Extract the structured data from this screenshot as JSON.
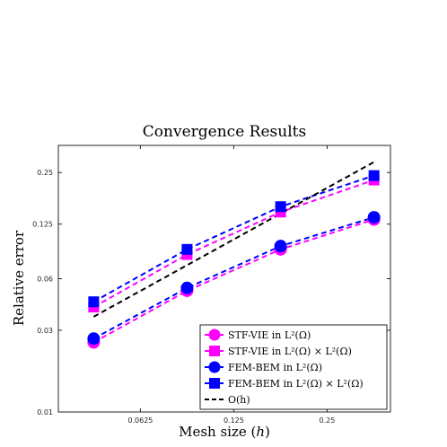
{
  "chart_data": {
    "type": "line",
    "title": "Convergence Results",
    "xlabel": "Mesh size",
    "xlabel_var": "h",
    "ylabel": "Relative error",
    "xscale": "log",
    "yscale": "log",
    "xlim": [
      0.034,
      0.4
    ],
    "ylim": [
      0.01,
      0.36
    ],
    "xticks": [
      0.0625,
      0.125,
      0.25
    ],
    "xtick_labels": [
      "0.0625",
      "0.125",
      "0.25"
    ],
    "yticks": [
      0.01,
      0.03,
      0.06,
      0.125,
      0.25
    ],
    "ytick_labels": [
      "0.01",
      "0.03",
      "0.06",
      "0.125",
      "0.25"
    ],
    "grid": false,
    "legend_position": "bottom-right",
    "x": [
      0.0442,
      0.0884,
      0.177,
      0.354
    ],
    "series": [
      {
        "name": "STF-VIE in L²(Ω)",
        "color": "#ff00ff",
        "marker": "circle",
        "values": [
          0.0255,
          0.051,
          0.089,
          0.133
        ]
      },
      {
        "name": "STF-VIE in L²(Ω) × L²(Ω)",
        "color": "#ff00ff",
        "marker": "square",
        "values": [
          0.041,
          0.083,
          0.147,
          0.226
        ]
      },
      {
        "name": "FEM-BEM in L²(Ω)",
        "color": "#0000ff",
        "marker": "circle",
        "values": [
          0.0268,
          0.053,
          0.093,
          0.137
        ]
      },
      {
        "name": "FEM-BEM in L²(Ω) × L²(Ω)",
        "color": "#0000ff",
        "marker": "square",
        "values": [
          0.044,
          0.089,
          0.158,
          0.24
        ]
      },
      {
        "name": "O(h)",
        "color": "#000000",
        "marker": "none",
        "linestyle": "dashed",
        "x": [
          0.0442,
          0.354
        ],
        "values": [
          0.036,
          0.288
        ]
      }
    ]
  }
}
